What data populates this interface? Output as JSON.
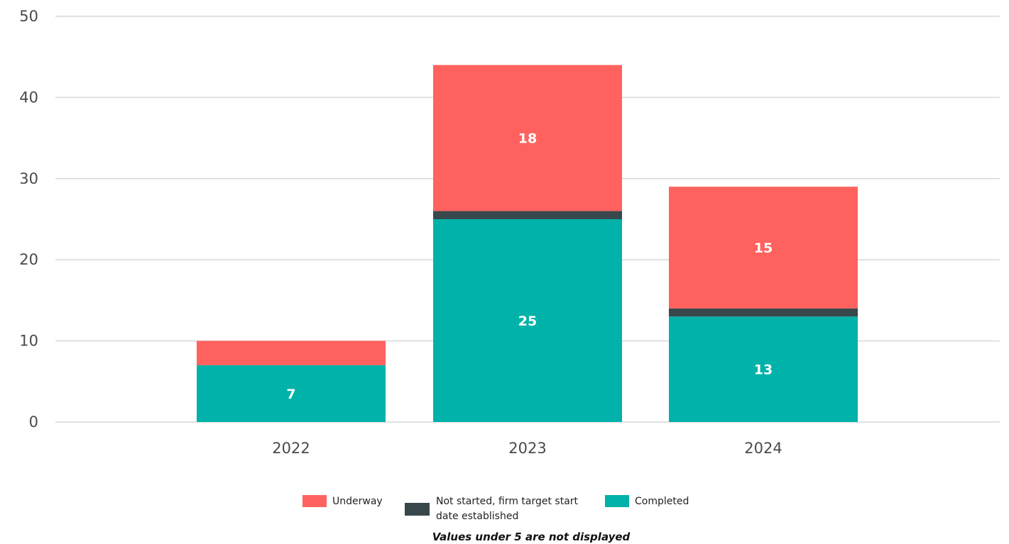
{
  "chart_data": {
    "type": "bar",
    "stacked": true,
    "categories": [
      "2022",
      "2023",
      "2024"
    ],
    "series": [
      {
        "name": "Completed",
        "color": "#00b2a9",
        "values": [
          7,
          25,
          13
        ],
        "labels": [
          "7",
          "25",
          "13"
        ]
      },
      {
        "name": "Not started, firm target start date established",
        "color": "#38474c",
        "values": [
          0,
          1,
          1
        ],
        "labels": [
          "",
          "",
          ""
        ]
      },
      {
        "name": "Underway",
        "color": "#ff625e",
        "values": [
          3,
          18,
          15
        ],
        "labels": [
          "",
          "18",
          "15"
        ]
      }
    ],
    "legend_order": [
      2,
      1,
      0
    ],
    "legend_lines": [
      [
        "Underway"
      ],
      [
        "Not started, firm target start",
        "date established"
      ],
      [
        "Completed"
      ]
    ],
    "ylim": [
      0,
      50
    ],
    "yticks": [
      0,
      10,
      20,
      30,
      40,
      50
    ],
    "grid": true,
    "legend_position": "bottom",
    "note": "Values under 5 are not displayed"
  }
}
